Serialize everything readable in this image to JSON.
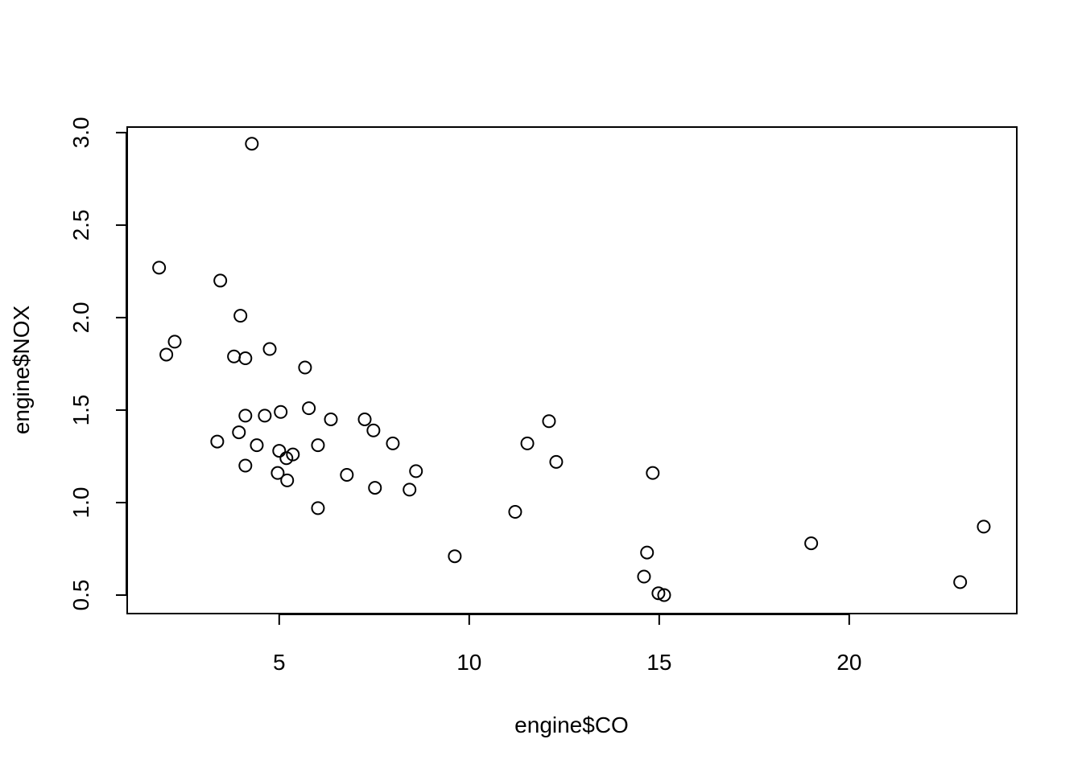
{
  "chart_data": {
    "type": "scatter",
    "x_label": "engine$CO",
    "y_label": "engine$NOX",
    "x": [
      4.28,
      1.84,
      3.45,
      3.98,
      2.25,
      2.03,
      3.81,
      4.11,
      4.75,
      5.68,
      5.78,
      5.04,
      4.11,
      4.62,
      6.36,
      7.25,
      7.48,
      7.99,
      12.1,
      11.53,
      12.29,
      14.83,
      3.37,
      3.94,
      4.41,
      5.0,
      5.36,
      5.19,
      6.02,
      4.11,
      4.96,
      5.21,
      6.78,
      8.6,
      7.52,
      8.43,
      6.02,
      11.21,
      9.62,
      14.68,
      14.6,
      14.98,
      15.13,
      19.0,
      22.92,
      23.54
    ],
    "values": [
      2.94,
      2.27,
      2.2,
      2.01,
      1.87,
      1.8,
      1.79,
      1.78,
      1.83,
      1.73,
      1.51,
      1.49,
      1.47,
      1.47,
      1.45,
      1.45,
      1.39,
      1.32,
      1.44,
      1.32,
      1.22,
      1.16,
      1.33,
      1.38,
      1.31,
      1.28,
      1.26,
      1.24,
      1.31,
      1.2,
      1.16,
      1.12,
      1.15,
      1.17,
      1.08,
      1.07,
      0.97,
      0.95,
      0.71,
      0.73,
      0.6,
      0.51,
      0.5,
      0.78,
      0.57,
      0.87
    ],
    "color": "#000000",
    "xlim": [
      1.0,
      24.41
    ],
    "ylim": [
      0.4,
      3.03
    ],
    "xticks": [
      5,
      10,
      15,
      20
    ],
    "yticks": [
      0.5,
      {
        "value": 1,
        "label": "1.0"
      },
      1.5,
      {
        "value": 2,
        "label": "2.0"
      },
      2.5,
      {
        "value": 3,
        "label": "3.0"
      }
    ]
  }
}
